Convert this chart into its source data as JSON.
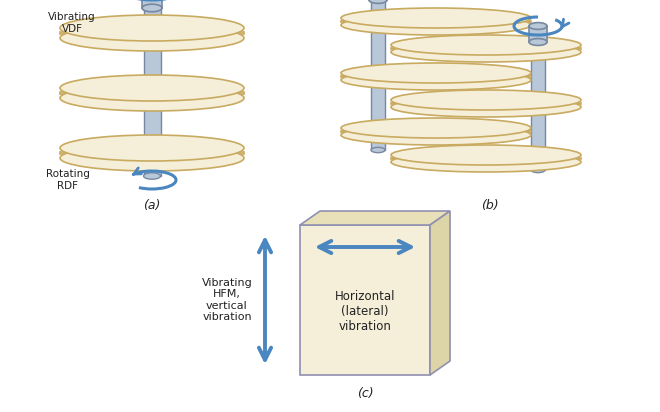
{
  "bg_color": "#ffffff",
  "disk_face_color": "#f5eed8",
  "disk_edge_color": "#c8aa60",
  "shaft_face_color": "#b8c8d8",
  "shaft_edge_color": "#7888a0",
  "arrow_color": "#4a86c0",
  "box_face_color": "#f5eed8",
  "box_top_color": "#e8e0b8",
  "box_right_color": "#ddd4a8",
  "box_edge_color": "#9090b0",
  "text_color": "#222222",
  "label_a": "(a)",
  "label_b": "(b)",
  "label_c": "(c)",
  "text_vibrating_vdf": "Vibrating\nVDF",
  "text_rotating_rdf": "Rotating\nRDF",
  "text_vibrating_hfm": "Vibrating\nHFM,\nvertical\nvibration",
  "text_horizontal": "Horizontal\n(lateral)\nvibration",
  "figsize": [
    6.6,
    4.12
  ],
  "dpi": 100
}
